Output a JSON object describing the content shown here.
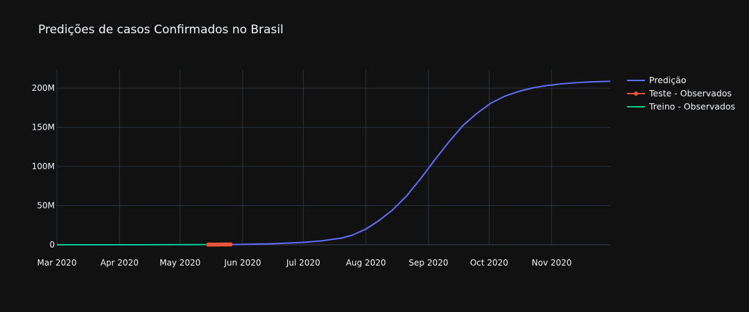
{
  "chart_data": {
    "type": "line",
    "title": "Predições de casos Confirmados no Brasil",
    "xlabel": "",
    "ylabel": "",
    "x_range": [
      "2020-03-01",
      "2020-11-30"
    ],
    "ylim": [
      0,
      224000000
    ],
    "x_ticks": [
      "Mar 2020",
      "Apr 2020",
      "May 2020",
      "Jun 2020",
      "Jul 2020",
      "Aug 2020",
      "Sep 2020",
      "Oct 2020",
      "Nov 2020"
    ],
    "x_tick_dates": [
      "2020-03-01",
      "2020-04-01",
      "2020-05-01",
      "2020-06-01",
      "2020-07-01",
      "2020-08-01",
      "2020-09-01",
      "2020-10-01",
      "2020-11-01"
    ],
    "y_ticks": [
      "0",
      "50M",
      "100M",
      "150M",
      "200M"
    ],
    "y_tick_values": [
      0,
      50000000,
      100000000,
      150000000,
      200000000
    ],
    "grid": true,
    "legend_position": "top-right",
    "series": [
      {
        "name": "Predição",
        "color": "#636efa",
        "mode": "line",
        "points": [
          [
            "2020-05-15",
            230000
          ],
          [
            "2020-06-01",
            450000
          ],
          [
            "2020-06-15",
            1200000
          ],
          [
            "2020-07-01",
            3000000
          ],
          [
            "2020-07-10",
            5000000
          ],
          [
            "2020-07-20",
            8500000
          ],
          [
            "2020-07-25",
            12000000
          ],
          [
            "2020-08-01",
            20000000
          ],
          [
            "2020-08-07",
            30000000
          ],
          [
            "2020-08-14",
            44000000
          ],
          [
            "2020-08-21",
            62000000
          ],
          [
            "2020-08-28",
            84000000
          ],
          [
            "2020-09-04",
            108000000
          ],
          [
            "2020-09-11",
            131000000
          ],
          [
            "2020-09-18",
            152000000
          ],
          [
            "2020-09-25",
            168000000
          ],
          [
            "2020-10-02",
            181000000
          ],
          [
            "2020-10-09",
            190000000
          ],
          [
            "2020-10-16",
            196000000
          ],
          [
            "2020-10-23",
            200500000
          ],
          [
            "2020-10-30",
            203500000
          ],
          [
            "2020-11-06",
            205500000
          ],
          [
            "2020-11-13",
            207000000
          ],
          [
            "2020-11-20",
            208000000
          ],
          [
            "2020-11-30",
            208800000
          ]
        ]
      },
      {
        "name": "Teste - Observados",
        "color": "#ef553b",
        "mode": "lines+markers",
        "points": [
          [
            "2020-05-15",
            200000
          ],
          [
            "2020-05-16",
            210000
          ],
          [
            "2020-05-17",
            220000
          ],
          [
            "2020-05-18",
            240000
          ],
          [
            "2020-05-19",
            255000
          ],
          [
            "2020-05-20",
            270000
          ],
          [
            "2020-05-21",
            290000
          ],
          [
            "2020-05-22",
            310000
          ],
          [
            "2020-05-23",
            330000
          ],
          [
            "2020-05-24",
            350000
          ],
          [
            "2020-05-25",
            365000
          ],
          [
            "2020-05-26",
            375000
          ]
        ]
      },
      {
        "name": "Treino - Observados",
        "color": "#00cc96",
        "mode": "line",
        "points": [
          [
            "2020-03-01",
            0
          ],
          [
            "2020-03-15",
            200
          ],
          [
            "2020-04-01",
            6000
          ],
          [
            "2020-04-15",
            25000
          ],
          [
            "2020-05-01",
            90000
          ],
          [
            "2020-05-14",
            190000
          ]
        ]
      }
    ]
  }
}
